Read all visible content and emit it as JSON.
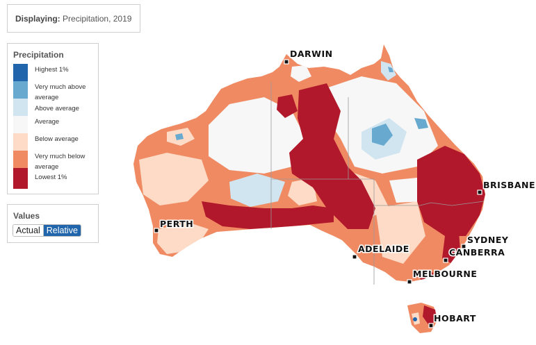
{
  "header": {
    "displaying_label": "Displaying:",
    "displaying_value": "Precipitation, 2019"
  },
  "legend": {
    "title": "Precipitation",
    "items": [
      {
        "label": "Highest 1%",
        "color": "#2166ac"
      },
      {
        "label": "Very much above average",
        "color": "#67a9cf"
      },
      {
        "label": "Above average",
        "color": "#d1e5f0"
      },
      {
        "label": "Average",
        "color": "#f7f7f7"
      },
      {
        "label": "Below average",
        "color": "#fddbc7"
      },
      {
        "label": "Very much below average",
        "color": "#ef8a62"
      },
      {
        "label": "Lowest 1%",
        "color": "#b2182b"
      }
    ]
  },
  "values": {
    "title": "Values",
    "actual_label": "Actual",
    "relative_label": "Relative",
    "selected": "Relative"
  },
  "map": {
    "cities": [
      "DARWIN",
      "BRISBANE",
      "PERTH",
      "SYDNEY",
      "CANBERRA",
      "ADELAIDE",
      "MELBOURNE",
      "HOBART"
    ]
  }
}
